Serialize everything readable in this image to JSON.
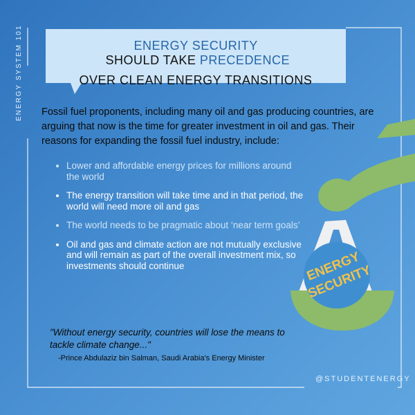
{
  "side_label": "ENERGY SYSTEM 101",
  "header": {
    "part1": "ENERGY SECURITY",
    "part2": " SHOULD TAKE ",
    "part3": "PRECEDENCE",
    "line2": "OVER CLEAN ENERGY TRANSITIONS"
  },
  "intro": "Fossil fuel proponents, including many oil and gas producing countries, are arguing that now is the time for greater investment in oil and gas. Their reasons for expanding the fossil fuel industry, include:",
  "bullets": [
    "Lower and affordable energy prices for millions around the world",
    "The energy transition will take time and in that period, the world will need more oil and gas",
    "The world needs to be pragmatic about ‘near term goals’",
    "Oil and gas and climate action are not mutually exclusive and will remain as part of the overall investment mix, so investments should continue"
  ],
  "quote": "\"Without energy security, countries will lose the means to tackle climate change...\"",
  "attribution": "-Prince Abdulaziz bin Salman, Saudi Arabia's Energy Minister",
  "scale_label": [
    "ENERGY",
    "SECURITY"
  ],
  "handle": "@STUDENTENERGY"
}
